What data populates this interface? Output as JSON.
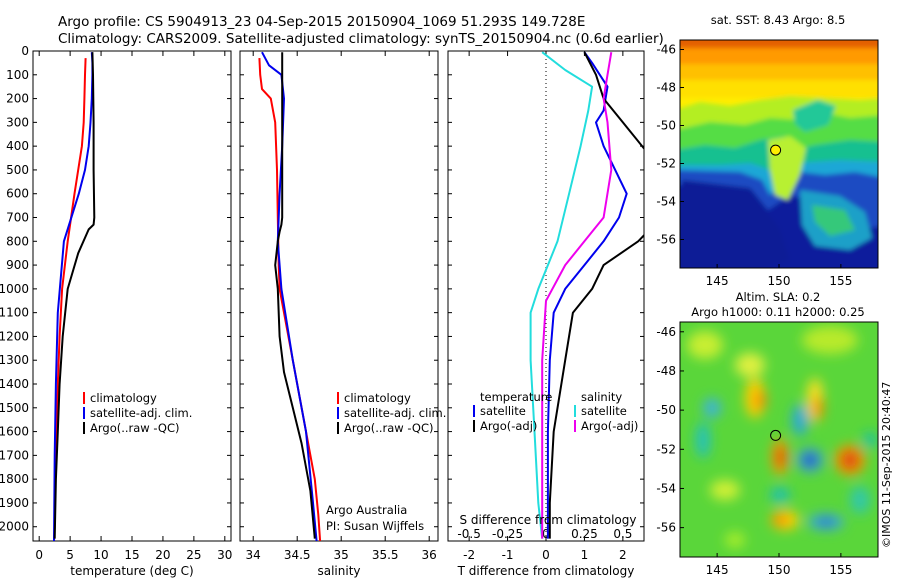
{
  "header": {
    "line1": "Argo profile: CS 5904913_23 04-Sep-2015 20150904_1069 51.293S 149.728E",
    "line2": "Climatology: CARS2009. Satellite-adjusted climatology: synTS_20150904.nc (0.6d earlier)"
  },
  "colors": {
    "climatology": "#ff0000",
    "satellite": "#0000ee",
    "argo": "#000000",
    "sat_salinity": "#22dddd",
    "argo_salinity": "#ee00ee"
  },
  "credit": "©IMOS 11-Sep-2015 20:40:47",
  "chart_data": [
    {
      "id": "temperature",
      "type": "line",
      "xlabel": "temperature (deg C)",
      "ylabel": "",
      "xlim": [
        -1,
        31
      ],
      "ylim": [
        2060,
        0
      ],
      "xticks": [
        0,
        5,
        10,
        15,
        20,
        25,
        30
      ],
      "yticks": [
        0,
        100,
        200,
        300,
        400,
        500,
        600,
        700,
        800,
        900,
        1000,
        1100,
        1200,
        1300,
        1400,
        1500,
        1600,
        1700,
        1800,
        1900,
        2000
      ],
      "legend": [
        "climatology",
        "satellite-adj. clim.",
        "Argo(..raw -QC)"
      ],
      "legend_position": "lower-right",
      "series": [
        {
          "name": "climatology",
          "color": "#ff0000",
          "x": [
            7.5,
            7.4,
            7.3,
            7.2,
            6.9,
            5.7,
            4.6,
            3.7,
            3.3,
            3.0,
            2.8,
            2.6,
            2.5,
            2.4
          ],
          "y": [
            30,
            100,
            200,
            300,
            400,
            600,
            800,
            1000,
            1200,
            1400,
            1600,
            1800,
            2000,
            2060
          ]
        },
        {
          "name": "satellite-adj. clim.",
          "color": "#0000ee",
          "x": [
            8.5,
            8.6,
            8.6,
            8.5,
            8.3,
            8.0,
            7.4,
            6.4,
            4.0,
            3.0,
            2.7,
            2.5,
            2.4
          ],
          "y": [
            5,
            50,
            100,
            200,
            300,
            400,
            500,
            600,
            800,
            1100,
            1400,
            1700,
            2060
          ]
        },
        {
          "name": "Argo(..raw -QC)",
          "color": "#000000",
          "x": [
            8.6,
            8.7,
            8.8,
            8.8,
            8.9,
            8.8,
            8.0,
            6.3,
            4.6,
            3.8,
            3.3,
            3.0,
            2.7,
            2.5
          ],
          "y": [
            5,
            100,
            300,
            500,
            700,
            730,
            750,
            850,
            1000,
            1200,
            1400,
            1600,
            1800,
            2050
          ]
        }
      ]
    },
    {
      "id": "salinity",
      "type": "line",
      "xlabel": "salinity",
      "ylabel": "",
      "xlim": [
        33.85,
        36.1
      ],
      "ylim": [
        2060,
        0
      ],
      "xticks": [
        34,
        34.5,
        35,
        35.5,
        36
      ],
      "legend": [
        "climatology",
        "satellite-adj. clim.",
        "Argo(..raw -QC)"
      ],
      "legend_position": "lower-right",
      "annotation": [
        "Argo Australia",
        "PI: Susan Wijffels"
      ],
      "series": [
        {
          "name": "climatology",
          "color": "#ff0000",
          "x": [
            34.07,
            34.08,
            34.1,
            34.2,
            34.25,
            34.27,
            34.28,
            34.29,
            34.3,
            34.45,
            34.6,
            34.7,
            34.74,
            34.76
          ],
          "y": [
            30,
            100,
            160,
            200,
            300,
            500,
            700,
            900,
            1000,
            1300,
            1600,
            1800,
            1950,
            2060
          ]
        },
        {
          "name": "satellite-adj. clim.",
          "color": "#0000ee",
          "x": [
            34.1,
            34.18,
            34.32,
            34.35,
            34.33,
            34.3,
            34.28,
            34.32,
            34.45,
            34.6,
            34.68,
            34.72
          ],
          "y": [
            5,
            60,
            100,
            200,
            400,
            600,
            800,
            1000,
            1300,
            1600,
            1900,
            2060
          ]
        },
        {
          "name": "Argo(..raw -QC)",
          "color": "#000000",
          "x": [
            34.33,
            34.33,
            34.33,
            34.32,
            34.3,
            34.28,
            34.25,
            34.28,
            34.3,
            34.35,
            34.45,
            34.55,
            34.65,
            34.7
          ],
          "y": [
            5,
            300,
            700,
            730,
            760,
            800,
            900,
            1000,
            1200,
            1350,
            1500,
            1650,
            1850,
            2050
          ]
        }
      ]
    },
    {
      "id": "difference",
      "type": "line",
      "xlabel": "T difference from climatology",
      "top_label": "S difference from climatology",
      "xlim": [
        -2.55,
        2.55
      ],
      "ylim": [
        2060,
        0
      ],
      "xticks": [
        -2,
        -1,
        0,
        1,
        2
      ],
      "top_ticks": [
        {
          "label": "-0.5",
          "t": -2
        },
        {
          "label": "-0.25",
          "t": -1
        },
        {
          "label": "0",
          "t": 0
        },
        {
          "label": "0.25",
          "t": 1
        },
        {
          "label": "0.5",
          "t": 2
        }
      ],
      "legend": {
        "temperature": {
          "title": "temperature",
          "items": [
            "satellite",
            "Argo(-adj)"
          ]
        },
        "salinity": {
          "title": "salinity",
          "items": [
            "satellite",
            "Argo(-adj)"
          ]
        }
      },
      "legend_position": "lower-center",
      "series": [
        {
          "name": "temperature satellite",
          "color": "#0000ee",
          "x": [
            1.0,
            1.2,
            1.4,
            1.6,
            1.5,
            1.3,
            1.5,
            2.1,
            1.9,
            1.5,
            1.0,
            0.5,
            0.2,
            0.1,
            0.05,
            0.05,
            0.05
          ],
          "y": [
            5,
            50,
            100,
            150,
            250,
            300,
            400,
            600,
            700,
            800,
            900,
            1000,
            1100,
            1300,
            1600,
            1900,
            2050
          ]
        },
        {
          "name": "temperature Argo(-adj)",
          "color": "#000000",
          "x": [
            1.0,
            1.3,
            1.5,
            2.0,
            2.5,
            3.0,
            3.0,
            2.4,
            1.5,
            1.2,
            0.7,
            0.5,
            0.2,
            0.1,
            0.1
          ],
          "y": [
            5,
            100,
            200,
            300,
            400,
            500,
            700,
            800,
            900,
            1000,
            1100,
            1300,
            1600,
            1900,
            2050
          ]
        },
        {
          "name": "salinity satellite",
          "color": "#22dddd",
          "x": [
            -0.1,
            0.5,
            1.2,
            1.1,
            0.9,
            0.6,
            0.3,
            -0.2,
            -0.4,
            -0.4,
            -0.3,
            -0.2,
            -0.1
          ],
          "y": [
            5,
            80,
            150,
            250,
            400,
            600,
            800,
            1000,
            1100,
            1300,
            1600,
            1900,
            2050
          ]
        },
        {
          "name": "salinity Argo(-adj)",
          "color": "#ee00ee",
          "x": [
            1.7,
            1.6,
            1.5,
            1.6,
            1.7,
            1.5,
            1.0,
            0.5,
            0.0,
            -0.1,
            -0.1,
            -0.1,
            -0.1
          ],
          "y": [
            5,
            100,
            200,
            300,
            500,
            700,
            800,
            900,
            1050,
            1300,
            1600,
            1900,
            2050
          ]
        }
      ]
    },
    {
      "id": "sst-map",
      "type": "heatmap",
      "title": "sat. SST: 8.43 Argo: 8.5",
      "xlim": [
        142,
        158
      ],
      "ylim": [
        -57.5,
        -45.5
      ],
      "xticks": [
        145,
        150,
        155
      ],
      "yticks": [
        -46,
        -48,
        -50,
        -52,
        -54,
        -56
      ],
      "float_location": {
        "lon": 149.728,
        "lat": -51.293
      }
    },
    {
      "id": "sla-map",
      "type": "heatmap",
      "title": "Altim. SLA: 0.2",
      "subtitle": "Argo h1000: 0.11 h2000: 0.25",
      "xlim": [
        142,
        158
      ],
      "ylim": [
        -57.5,
        -45.5
      ],
      "xticks": [
        145,
        150,
        155
      ],
      "yticks": [
        -46,
        -48,
        -50,
        -52,
        -54,
        -56
      ],
      "float_location": {
        "lon": 149.728,
        "lat": -51.293
      }
    }
  ]
}
